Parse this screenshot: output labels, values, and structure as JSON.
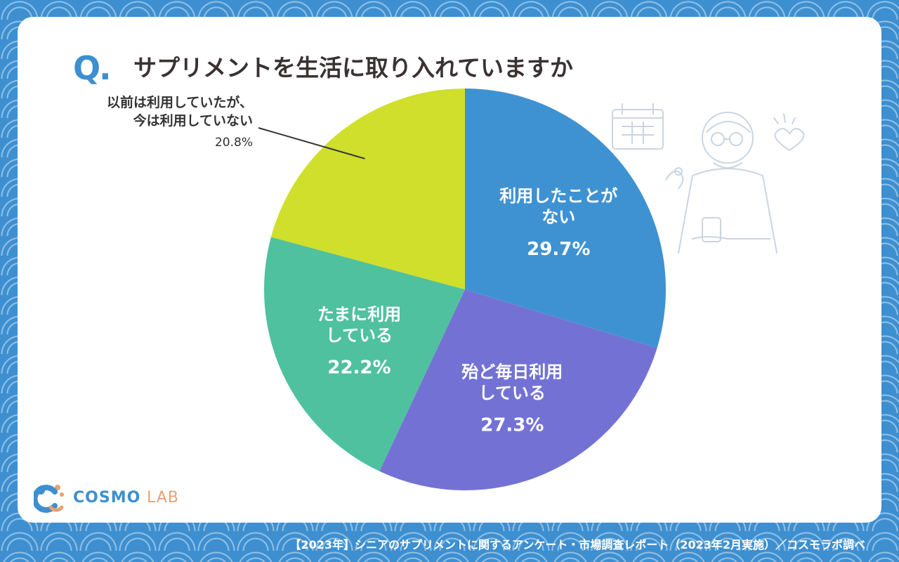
{
  "header": {
    "q_mark": "Q.",
    "question": "サプリメントを生活に取り入れていますか"
  },
  "chart_data": {
    "type": "pie",
    "start_angle_deg": 0,
    "direction": "clockwise",
    "slices": [
      {
        "label_lines": [
          "利用したことが",
          "ない"
        ],
        "value": 29.7,
        "value_text": "29.7%",
        "color": "#3f92d2",
        "label_inside": true
      },
      {
        "label_lines": [
          "殆ど毎日利用",
          "している"
        ],
        "value": 27.3,
        "value_text": "27.3%",
        "color": "#7372d4",
        "label_inside": true
      },
      {
        "label_lines": [
          "たまに利用",
          "している"
        ],
        "value": 22.2,
        "value_text": "22.2%",
        "color": "#4fc19f",
        "label_inside": true
      },
      {
        "label_lines": [
          "以前は利用していたが、",
          "今は利用していない"
        ],
        "value": 20.8,
        "value_text": "20.8%",
        "color": "#cfdf2c",
        "label_inside": false
      }
    ]
  },
  "logo": {
    "part1": "COSMO",
    "part2": "LAB"
  },
  "footer": {
    "source": "【2023年】シニアのサプリメントに関するアンケート・市場調査レポート（2023年2月実施）／コスモラボ調べ"
  }
}
